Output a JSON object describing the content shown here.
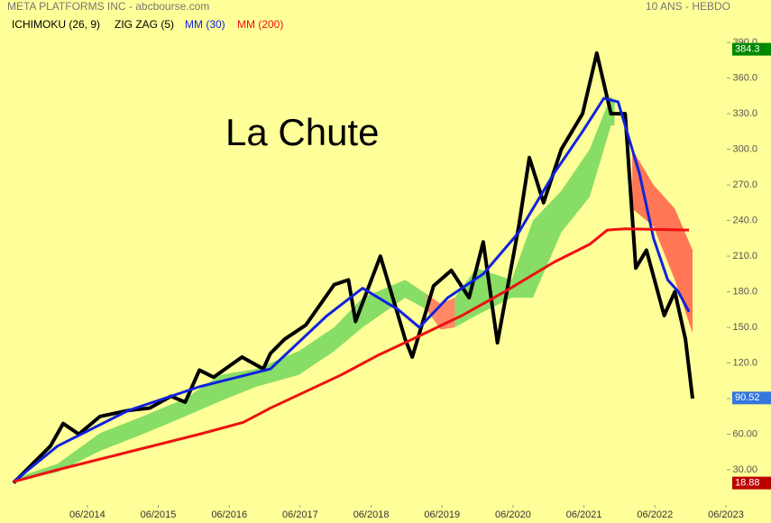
{
  "chart_data": {
    "type": "line",
    "title": "META PLATFORMS INC - abcbourse.com",
    "subtitle": "10 ANS - HEBDO",
    "annotation": "La Chute",
    "xlim": [
      2013.38,
      2023.42
    ],
    "ylim": [
      0,
      403
    ],
    "xticks": [
      {
        "value": 2014.42,
        "label": "06/2014"
      },
      {
        "value": 2015.42,
        "label": "06/2015"
      },
      {
        "value": 2016.42,
        "label": "06/2016"
      },
      {
        "value": 2017.42,
        "label": "06/2017"
      },
      {
        "value": 2018.42,
        "label": "06/2018"
      },
      {
        "value": 2019.42,
        "label": "06/2019"
      },
      {
        "value": 2020.42,
        "label": "06/2020"
      },
      {
        "value": 2021.42,
        "label": "06/2021"
      },
      {
        "value": 2022.42,
        "label": "06/2022"
      },
      {
        "value": 2023.42,
        "label": "06/2023"
      }
    ],
    "yticks": [
      {
        "value": 30,
        "label": "30.00"
      },
      {
        "value": 60,
        "label": "60.00"
      },
      {
        "value": 90,
        "label": "90.00"
      },
      {
        "value": 120,
        "label": "120.0"
      },
      {
        "value": 150,
        "label": "150.0"
      },
      {
        "value": 180,
        "label": "180.0"
      },
      {
        "value": 210,
        "label": "210.0"
      },
      {
        "value": 240,
        "label": "240.0"
      },
      {
        "value": 270,
        "label": "270.0"
      },
      {
        "value": 300,
        "label": "300.0"
      },
      {
        "value": 330,
        "label": "330.0"
      },
      {
        "value": 360,
        "label": "360.0"
      },
      {
        "value": 390,
        "label": "390.0"
      }
    ],
    "ichimoku": {
      "name": "ICHIMOKU (26, 9)",
      "pieces": [
        {
          "color": "#88dd66",
          "x": [
            2013.5,
            2014.0,
            2014.6,
            2015.2,
            2015.8,
            2016.3,
            2016.8,
            2017.4,
            2017.9,
            2018.3,
            2018.9,
            2019.2
          ],
          "upper": [
            25,
            35,
            61,
            75,
            90,
            110,
            115,
            130,
            150,
            175,
            190,
            178
          ],
          "lower": [
            22,
            28,
            46,
            60,
            75,
            88,
            100,
            110,
            130,
            150,
            175,
            165
          ]
        },
        {
          "color": "#ff8866",
          "x": [
            2019.2,
            2019.4,
            2019.6
          ],
          "upper": [
            178,
            170,
            175
          ],
          "lower": [
            165,
            148,
            150
          ]
        },
        {
          "color": "#88dd66",
          "x": [
            2019.6,
            2019.9,
            2020.4,
            2020.7,
            2021.1,
            2021.5,
            2021.8,
            2021.85
          ],
          "upper": [
            175,
            200,
            190,
            240,
            265,
            300,
            345,
            340
          ],
          "lower": [
            150,
            160,
            175,
            175,
            230,
            260,
            320,
            320
          ]
        },
        {
          "color": "#ff7755",
          "x": [
            2022.1,
            2022.4,
            2022.7,
            2022.95
          ],
          "upper": [
            300,
            270,
            250,
            215
          ],
          "lower": [
            250,
            235,
            190,
            145
          ]
        }
      ]
    },
    "series": [
      {
        "name": "ZIG ZAG (5)",
        "color": "#000000",
        "x": [
          2013.38,
          2013.7,
          2013.9,
          2014.08,
          2014.3,
          2014.6,
          2015.0,
          2015.3,
          2015.6,
          2015.8,
          2016.0,
          2016.2,
          2016.6,
          2016.9,
          2017.0,
          2017.2,
          2017.5,
          2017.9,
          2018.1,
          2018.2,
          2018.55,
          2018.9,
          2019.0,
          2019.3,
          2019.55,
          2019.8,
          2020.0,
          2020.2,
          2020.5,
          2020.65,
          2020.85,
          2021.1,
          2021.4,
          2021.6,
          2021.8,
          2022.0,
          2022.15,
          2022.3,
          2022.55,
          2022.7,
          2022.85,
          2022.95
        ],
        "values": [
          19,
          38,
          50,
          69,
          60,
          75,
          80,
          82,
          92,
          87,
          114,
          108,
          125,
          115,
          128,
          140,
          152,
          186,
          190,
          155,
          210,
          140,
          125,
          185,
          198,
          175,
          222,
          137,
          235,
          293,
          255,
          300,
          330,
          381,
          330,
          330,
          200,
          215,
          160,
          180,
          140,
          90
        ]
      },
      {
        "name": "MM (30)",
        "color": "#1122dd",
        "x": [
          2013.38,
          2014.0,
          2015.0,
          2016.0,
          2017.0,
          2017.8,
          2018.3,
          2018.8,
          2019.1,
          2019.5,
          2020.0,
          2020.5,
          2021.0,
          2021.4,
          2021.7,
          2021.9,
          2022.2,
          2022.4,
          2022.6,
          2022.75,
          2022.9
        ],
        "values": [
          20,
          50,
          80,
          100,
          115,
          160,
          183,
          165,
          150,
          175,
          195,
          230,
          280,
          315,
          343,
          340,
          280,
          225,
          190,
          180,
          163
        ]
      },
      {
        "name": "MM (200)",
        "color": "#ee1111",
        "x": [
          2013.38,
          2014.0,
          2015.0,
          2016.0,
          2016.62,
          2017.0,
          2018.0,
          2018.5,
          2019.0,
          2019.7,
          2020.3,
          2021.0,
          2021.5,
          2021.75,
          2022.0,
          2022.9
        ],
        "values": [
          20,
          30,
          45,
          60,
          70,
          82,
          110,
          126,
          140,
          160,
          180,
          205,
          220,
          232,
          233,
          232
        ]
      }
    ],
    "price_labels": [
      {
        "value": 384.3,
        "color": "#008800"
      },
      {
        "value": 90.52,
        "color": "#3377dd"
      },
      {
        "value": 18.88,
        "color": "#bb0000"
      }
    ]
  }
}
